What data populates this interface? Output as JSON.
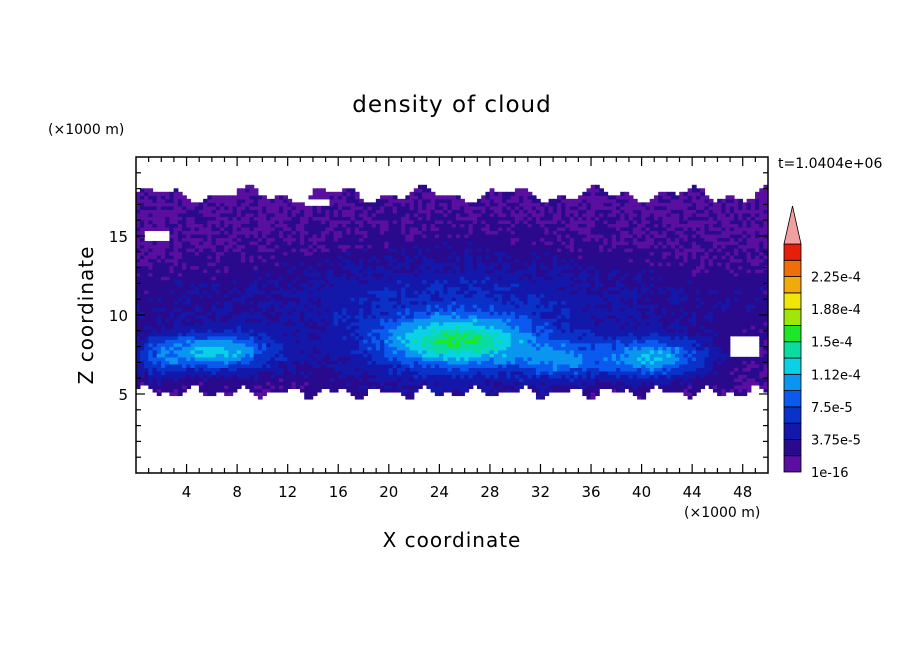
{
  "chart_data": {
    "type": "heatmap",
    "title": "density of cloud",
    "xlabel": "X coordinate",
    "ylabel": "Z coordinate",
    "x_unit": "(×1000 m)",
    "y_unit": "(×1000 m)",
    "time_label": "t=1.0404e+06",
    "xlim": [
      0,
      50
    ],
    "ylim": [
      0,
      20
    ],
    "x_ticks": [
      4,
      8,
      12,
      16,
      20,
      24,
      28,
      32,
      36,
      40,
      44,
      48
    ],
    "y_ticks": [
      5,
      10,
      15
    ],
    "colorbar": {
      "levels": [
        {
          "label": "1e-16",
          "color": "#5a0fa0"
        },
        {
          "label": "",
          "color": "#2a0a8c"
        },
        {
          "label": "3.75e-5",
          "color": "#1418aa"
        },
        {
          "label": "",
          "color": "#0a32c8"
        },
        {
          "label": "7.5e-5",
          "color": "#0a5af0"
        },
        {
          "label": "",
          "color": "#0a96f0"
        },
        {
          "label": "1.12e-4",
          "color": "#0ad2e6"
        },
        {
          "label": "",
          "color": "#0adca0"
        },
        {
          "label": "1.5e-4",
          "color": "#1ee628"
        },
        {
          "label": "",
          "color": "#a0e60a"
        },
        {
          "label": "1.88e-4",
          "color": "#f0e60a"
        },
        {
          "label": "",
          "color": "#f0aa0a"
        },
        {
          "label": "2.25e-4",
          "color": "#f06e0a"
        },
        {
          "label": "",
          "color": "#e61e0a"
        }
      ],
      "overflow_color": "#f0a0a0"
    },
    "regions": [
      {
        "name": "cloud base z",
        "value": 5
      },
      {
        "name": "cloud top z",
        "value": 17.5
      },
      {
        "name": "core 1 x center",
        "value": 6
      },
      {
        "name": "core 2 x center",
        "value": 25
      },
      {
        "name": "core 3 x center",
        "value": 41
      }
    ]
  }
}
